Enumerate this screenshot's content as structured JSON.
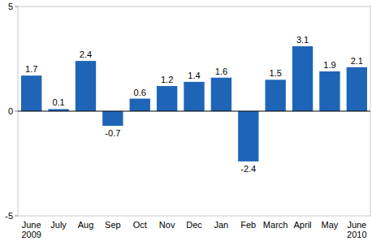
{
  "chart_data": {
    "type": "bar",
    "categories": [
      "June 2009",
      "July",
      "Aug",
      "Sep",
      "Oct",
      "Nov",
      "Dec",
      "Jan",
      "Feb",
      "March",
      "April",
      "May",
      "June 2010"
    ],
    "values": [
      1.7,
      0.1,
      2.4,
      -0.7,
      0.6,
      1.2,
      1.4,
      1.6,
      -2.4,
      1.5,
      3.1,
      1.9,
      2.1
    ],
    "color": "#1f65b7",
    "ylim": [
      -5,
      5
    ],
    "yticks": [
      -5,
      0,
      5
    ],
    "grid": false,
    "data_labels": true
  }
}
